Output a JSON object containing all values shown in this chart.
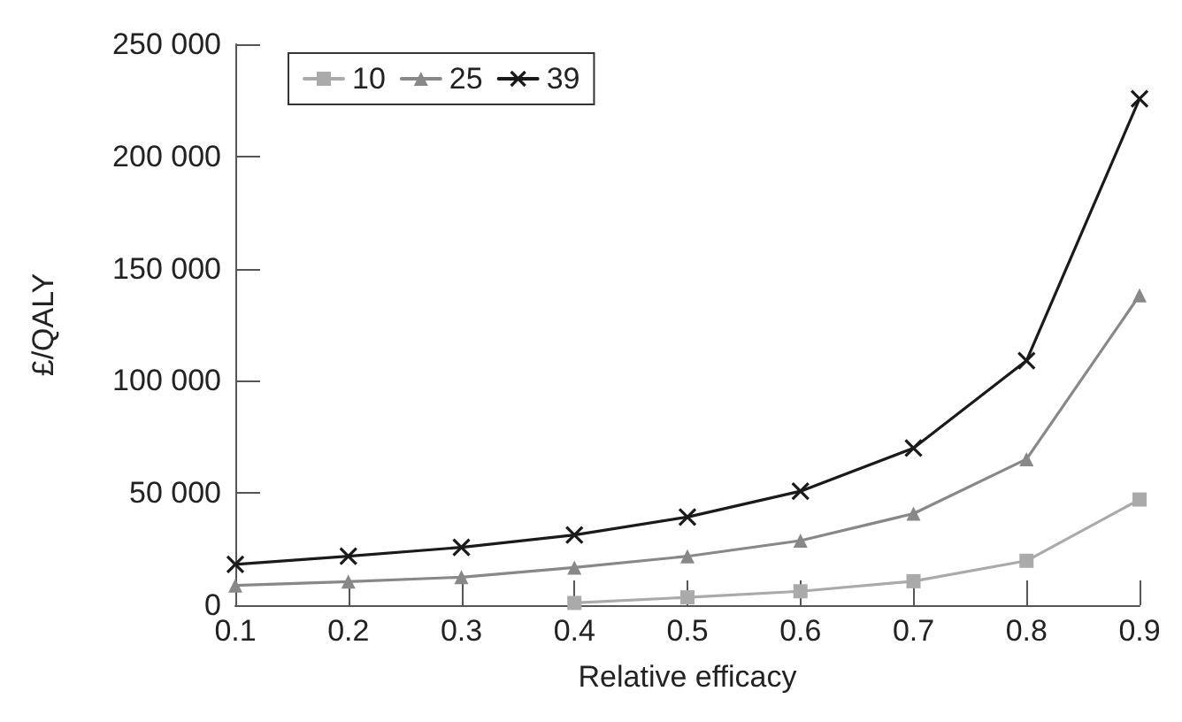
{
  "chart_data": {
    "type": "line",
    "xlabel": "Relative efficacy",
    "ylabel": "£/QALY",
    "x": [
      0.1,
      0.2,
      0.3,
      0.4,
      0.5,
      0.6,
      0.7,
      0.8,
      0.9
    ],
    "series": [
      {
        "name": "10",
        "color": "#aaaaaa",
        "marker": "square",
        "values": [
          null,
          null,
          null,
          1000,
          3500,
          6200,
          10700,
          19800,
          47100
        ]
      },
      {
        "name": "25",
        "color": "#888888",
        "marker": "triangle",
        "values": [
          8800,
          10500,
          12500,
          16800,
          21800,
          28800,
          40800,
          65100,
          138100
        ]
      },
      {
        "name": "39",
        "color": "#1a1a1a",
        "marker": "cross",
        "values": [
          18200,
          21800,
          25800,
          31300,
          39300,
          50800,
          70000,
          109000,
          225700
        ]
      }
    ],
    "xlim": [
      0.1,
      0.9
    ],
    "xticks": [
      0.1,
      0.2,
      0.3,
      0.4,
      0.5,
      0.6,
      0.7,
      0.8,
      0.9
    ],
    "ylim": [
      0,
      250000
    ],
    "yticks": [
      0,
      {
        "value": 50000,
        "label": "50 000"
      },
      {
        "value": 100000,
        "label": "100 000"
      },
      {
        "value": 150000,
        "label": "150 000"
      },
      {
        "value": 200000,
        "label": "200 000"
      },
      {
        "value": 250000,
        "label": "250 000"
      }
    ],
    "grid": false,
    "legend": "top left",
    "line_style": "solid"
  }
}
